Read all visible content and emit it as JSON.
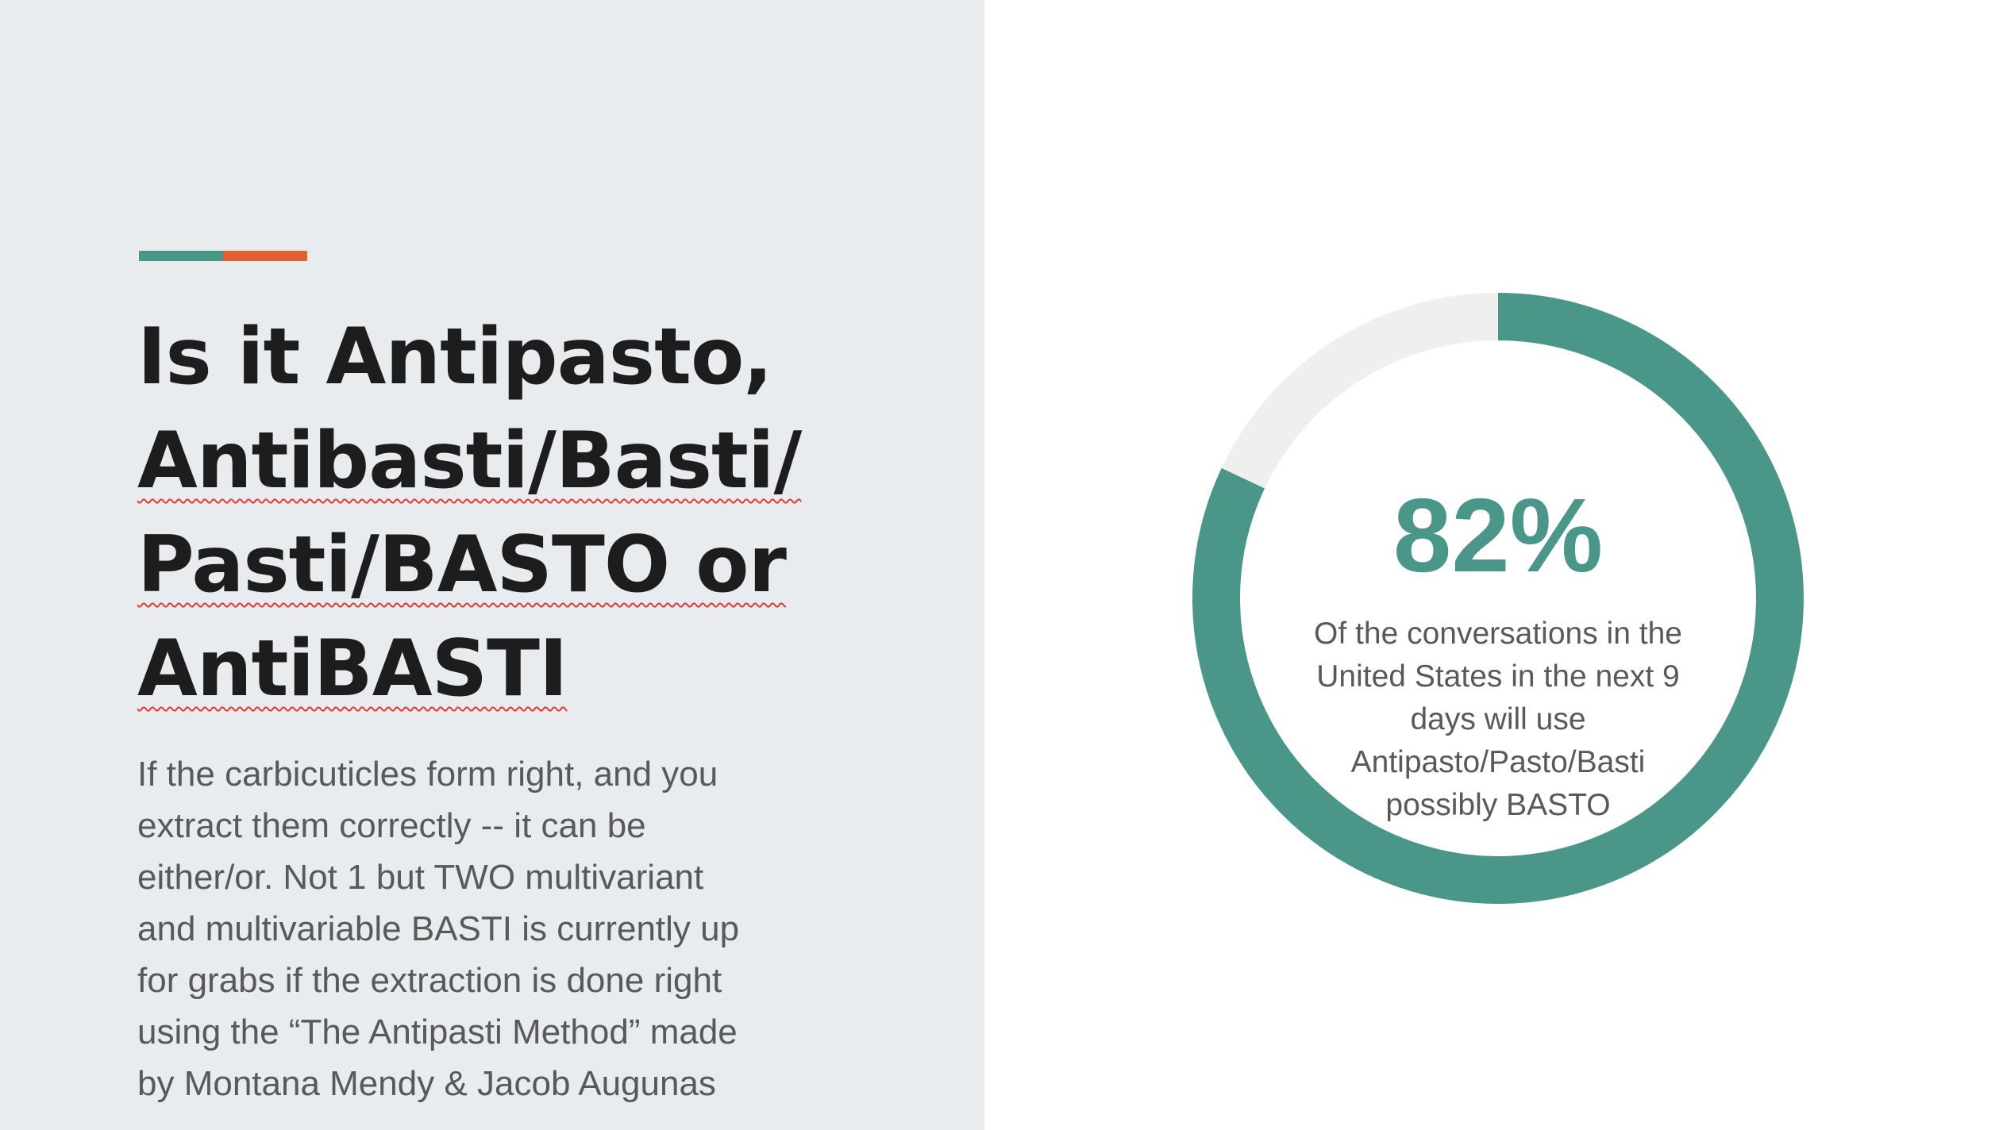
{
  "slide": {
    "colors": {
      "panel_bg": "#e8ecee",
      "teal": "#4a9688",
      "orange": "#e2602e",
      "track": "#efefef",
      "title": "#1d1d1d",
      "body": "#595959"
    },
    "title_lines": [
      "Is it Antipasto,",
      "Antibasti/Basti/",
      "Pasti/BASTO or",
      "AntiBASTI"
    ],
    "body_lines": [
      "If the carbicuticles form right, and you",
      "extract them correctly -- it can be",
      "either/or. Not 1 but TWO multivariant",
      "and multivariable BASTI is currently up",
      "for grabs if the extraction is done right",
      "using the “The Antipasti Method” made",
      "by Montana Mendy & Jacob Augunas"
    ],
    "stat": {
      "value_text": "82%",
      "fraction": 0.82,
      "caption_lines": [
        "Of the conversations in the",
        "United States in the next 9",
        "days will use",
        "Antipasto/Pasto/Basti",
        "possibly BASTO"
      ]
    }
  }
}
